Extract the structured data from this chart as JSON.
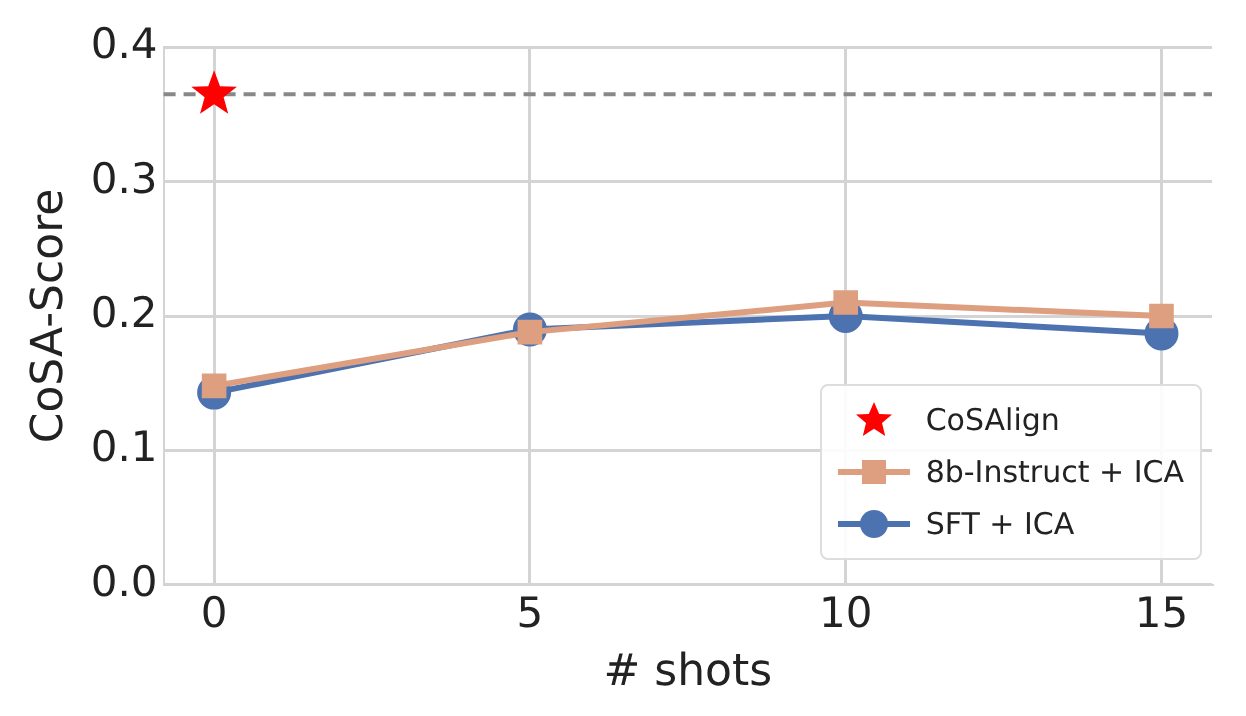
{
  "chart_data": {
    "type": "line",
    "xlabel": "# shots",
    "ylabel": "CoSA-Score",
    "xlim": [
      -0.8,
      15.8
    ],
    "xticks": [
      0,
      5,
      10,
      15
    ],
    "ylim": [
      0,
      0.4
    ],
    "yticks": [
      {
        "value": 0,
        "label": "0.0"
      },
      {
        "value": 0.1,
        "label": "0.1"
      },
      {
        "value": 0.2,
        "label": "0.2"
      },
      {
        "value": 0.3,
        "label": "0.3"
      },
      {
        "value": 0.4,
        "label": "0.4"
      }
    ],
    "grid": true,
    "legend": "bottom right",
    "line_style": "solid",
    "ref_lines": [
      {
        "axis": "y",
        "value": 0.365,
        "color": "#888888",
        "line_style": "dashed"
      }
    ],
    "series": [
      {
        "name": "CoSAlign",
        "type": "scatter",
        "marker": "star",
        "color": "#ff0000",
        "x": [
          0
        ],
        "values": [
          0.365
        ]
      },
      {
        "name": "8b-Instruct + ICA",
        "type": "line",
        "marker": "square",
        "color": "#dd9f7f",
        "x": [
          0,
          5,
          10,
          15
        ],
        "values": [
          0.148,
          0.188,
          0.21,
          0.2
        ]
      },
      {
        "name": "SFT + ICA",
        "type": "line",
        "marker": "circle",
        "color": "#4c72b0",
        "x": [
          0,
          5,
          10,
          15
        ],
        "values": [
          0.143,
          0.19,
          0.2,
          0.187
        ]
      }
    ]
  }
}
